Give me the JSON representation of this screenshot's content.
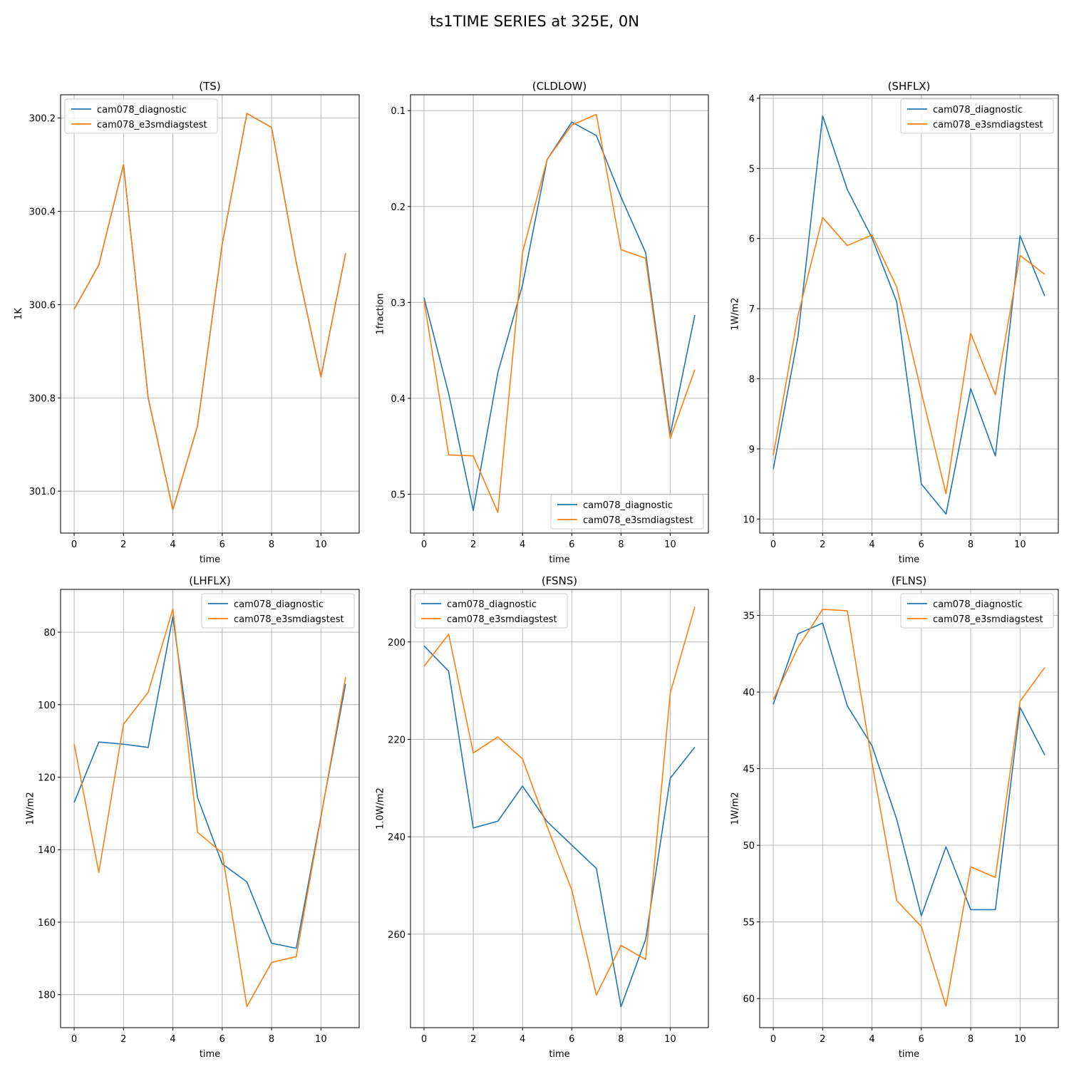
{
  "suptitle": "ts1TIME SERIES at 325E, 0N",
  "colors": {
    "series1": "#1f77b4",
    "series2": "#ff7f0e",
    "grid": "#b0b0b0"
  },
  "chart_data": [
    {
      "type": "line",
      "title": "(TS)",
      "xlabel": "time",
      "ylabel": "1K",
      "x": [
        0,
        1,
        2,
        3,
        4,
        5,
        6,
        7,
        8,
        9,
        10,
        11
      ],
      "xticks": [
        0,
        2,
        4,
        6,
        8,
        10
      ],
      "xlim": [
        -0.55,
        11.55
      ],
      "yticks": [
        300.2,
        300.4,
        300.6,
        300.8,
        301.0
      ],
      "ytick_labels": [
        "300.2",
        "300.4",
        "300.6",
        "300.8",
        "301.0"
      ],
      "ylim": [
        300.15,
        301.09
      ],
      "inverted_y": true,
      "grid": true,
      "legend": "upper left",
      "series": [
        {
          "name": "cam078_diagnostic",
          "color": "#1f77b4",
          "values": [
            300.61,
            300.515,
            300.3,
            300.8,
            301.04,
            300.86,
            300.47,
            300.19,
            300.22,
            300.51,
            300.755,
            300.49
          ]
        },
        {
          "name": "cam078_e3smdiagstest",
          "color": "#ff7f0e",
          "values": [
            300.61,
            300.515,
            300.3,
            300.8,
            301.04,
            300.86,
            300.47,
            300.19,
            300.22,
            300.51,
            300.755,
            300.49
          ]
        }
      ]
    },
    {
      "type": "line",
      "title": "(CLDLOW)",
      "xlabel": "time",
      "ylabel": "1fraction",
      "x": [
        0,
        1,
        2,
        3,
        4,
        5,
        6,
        7,
        8,
        9,
        10,
        11
      ],
      "xticks": [
        0,
        2,
        4,
        6,
        8,
        10
      ],
      "xlim": [
        -0.55,
        11.55
      ],
      "yticks": [
        0.1,
        0.2,
        0.3,
        0.4,
        0.5
      ],
      "ytick_labels": [
        "0.1",
        "0.2",
        "0.3",
        "0.4",
        "0.5"
      ],
      "ylim": [
        0.0835,
        0.5405
      ],
      "inverted_y": true,
      "grid": true,
      "legend": "lower right",
      "series": [
        {
          "name": "cam078_diagnostic",
          "color": "#1f77b4",
          "values": [
            0.295,
            0.395,
            0.517,
            0.373,
            0.282,
            0.151,
            0.112,
            0.126,
            0.19,
            0.248,
            0.438,
            0.313
          ]
        },
        {
          "name": "cam078_e3smdiagstest",
          "color": "#ff7f0e",
          "values": [
            0.298,
            0.459,
            0.46,
            0.519,
            0.248,
            0.151,
            0.115,
            0.104,
            0.245,
            0.254,
            0.442,
            0.37
          ]
        }
      ]
    },
    {
      "type": "line",
      "title": "(SHFLX)",
      "xlabel": "time",
      "ylabel": "1W/m2",
      "x": [
        0,
        1,
        2,
        3,
        4,
        5,
        6,
        7,
        8,
        9,
        10,
        11
      ],
      "xticks": [
        0,
        2,
        4,
        6,
        8,
        10
      ],
      "xlim": [
        -0.55,
        11.55
      ],
      "yticks": [
        4,
        5,
        6,
        7,
        8,
        9,
        10
      ],
      "ytick_labels": [
        "4",
        "5",
        "6",
        "7",
        "8",
        "9",
        "10"
      ],
      "ylim": [
        3.95,
        10.2
      ],
      "inverted_y": true,
      "grid": true,
      "legend": "upper right",
      "series": [
        {
          "name": "cam078_diagnostic",
          "color": "#1f77b4",
          "values": [
            9.29,
            7.4,
            4.25,
            5.3,
            5.99,
            6.9,
            9.5,
            9.93,
            8.14,
            9.1,
            5.96,
            6.82
          ]
        },
        {
          "name": "cam078_e3smdiagstest",
          "color": "#ff7f0e",
          "values": [
            9.09,
            7.1,
            5.7,
            6.1,
            5.95,
            6.69,
            8.19,
            9.64,
            7.35,
            8.23,
            6.24,
            6.51
          ]
        }
      ]
    },
    {
      "type": "line",
      "title": "(LHFLX)",
      "xlabel": "time",
      "ylabel": "1W/m2",
      "x": [
        0,
        1,
        2,
        3,
        4,
        5,
        6,
        7,
        8,
        9,
        10,
        11
      ],
      "xticks": [
        0,
        2,
        4,
        6,
        8,
        10
      ],
      "xlim": [
        -0.55,
        11.55
      ],
      "yticks": [
        80,
        100,
        120,
        140,
        160,
        180
      ],
      "ytick_labels": [
        "80",
        "100",
        "120",
        "140",
        "160",
        "180"
      ],
      "ylim": [
        68.2,
        189.1
      ],
      "inverted_y": true,
      "grid": true,
      "legend": "upper right",
      "series": [
        {
          "name": "cam078_diagnostic",
          "color": "#1f77b4",
          "values": [
            127,
            110.3,
            110.9,
            111.8,
            75.7,
            125.6,
            143.9,
            148.9,
            165.8,
            167.2,
            130.8,
            94.3
          ]
        },
        {
          "name": "cam078_e3smdiagstest",
          "color": "#ff7f0e",
          "values": [
            110.8,
            146.3,
            105.4,
            96.6,
            73.6,
            135.2,
            140.9,
            183.3,
            171.1,
            169.5,
            131.1,
            92.4
          ]
        }
      ]
    },
    {
      "type": "line",
      "title": "(FSNS)",
      "xlabel": "time",
      "ylabel": "1.0W/m2",
      "x": [
        0,
        1,
        2,
        3,
        4,
        5,
        6,
        7,
        8,
        9,
        10,
        11
      ],
      "xticks": [
        0,
        2,
        4,
        6,
        8,
        10
      ],
      "xlim": [
        -0.55,
        11.55
      ],
      "yticks": [
        200,
        220,
        240,
        260
      ],
      "ytick_labels": [
        "200",
        "220",
        "240",
        "260"
      ],
      "ylim": [
        189.2,
        279.2
      ],
      "inverted_y": true,
      "grid": true,
      "legend": "upper left",
      "series": [
        {
          "name": "cam078_diagnostic",
          "color": "#1f77b4",
          "values": [
            200.8,
            206,
            238.2,
            236.8,
            229.6,
            236.9,
            241.7,
            246.5,
            274.9,
            261.1,
            228,
            221.6
          ]
        },
        {
          "name": "cam078_e3smdiagstest",
          "color": "#ff7f0e",
          "values": [
            205,
            198.4,
            222.8,
            219.5,
            224,
            237.9,
            250.9,
            272.5,
            262.3,
            265.2,
            210.5,
            192.8
          ]
        }
      ]
    },
    {
      "type": "line",
      "title": "(FLNS)",
      "xlabel": "time",
      "ylabel": "1W/m2",
      "x": [
        0,
        1,
        2,
        3,
        4,
        5,
        6,
        7,
        8,
        9,
        10,
        11
      ],
      "xticks": [
        0,
        2,
        4,
        6,
        8,
        10
      ],
      "xlim": [
        -0.55,
        11.55
      ],
      "yticks": [
        35,
        40,
        45,
        50,
        55,
        60
      ],
      "ytick_labels": [
        "35",
        "40",
        "45",
        "50",
        "55",
        "60"
      ],
      "ylim": [
        33.3,
        61.9
      ],
      "inverted_y": true,
      "grid": true,
      "legend": "upper right",
      "series": [
        {
          "name": "cam078_diagnostic",
          "color": "#1f77b4",
          "values": [
            40.8,
            36.2,
            35.5,
            40.9,
            43.5,
            48.3,
            54.6,
            50.1,
            54.2,
            54.2,
            41,
            44.1
          ]
        },
        {
          "name": "cam078_e3smdiagstest",
          "color": "#ff7f0e",
          "values": [
            40.5,
            37.1,
            34.6,
            34.7,
            44.6,
            53.6,
            55.3,
            60.5,
            51.4,
            52.1,
            40.6,
            38.4
          ]
        }
      ]
    }
  ]
}
